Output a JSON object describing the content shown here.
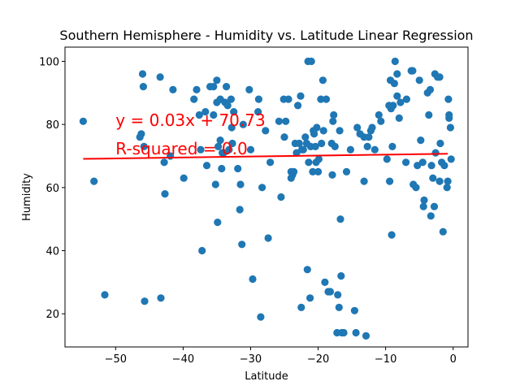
{
  "chart_data": {
    "type": "scatter",
    "title": "Southern Hemisphere - Humidity vs. Latitude Linear Regression",
    "xlabel": "Latitude",
    "ylabel": "Humidity",
    "xlim": [
      -57.5,
      2.2
    ],
    "ylim": [
      9.5,
      104.5
    ],
    "xticks": [
      -50,
      -40,
      -30,
      -20,
      -10,
      0
    ],
    "yticks": [
      20,
      40,
      60,
      80,
      100
    ],
    "grid": false,
    "point_color": "#1f77b4",
    "line_color": "#ff0000",
    "regression": {
      "slope": 0.03,
      "intercept": 70.73,
      "x_range": [
        -54.8,
        -0.8
      ]
    },
    "annotations": [
      {
        "text": "y = 0.03x + 70.73",
        "x": -50,
        "y": 79.5,
        "color": "#ff0000"
      },
      {
        "text": "R-squared = 0.0",
        "x": -50,
        "y": 70.5,
        "color": "#ff0000"
      }
    ],
    "points": [
      [
        -54.8,
        81
      ],
      [
        -53.2,
        62
      ],
      [
        -51.6,
        26
      ],
      [
        -46.2,
        77
      ],
      [
        -46.4,
        76
      ],
      [
        -46.0,
        96
      ],
      [
        -45.9,
        92
      ],
      [
        -45.8,
        73
      ],
      [
        -45.7,
        24
      ],
      [
        -43.4,
        95
      ],
      [
        -43.3,
        25
      ],
      [
        -42.8,
        68
      ],
      [
        -42.7,
        58
      ],
      [
        -41.9,
        70
      ],
      [
        -41.5,
        91
      ],
      [
        -39.9,
        63
      ],
      [
        -38.4,
        88
      ],
      [
        -38.0,
        91
      ],
      [
        -37.6,
        83
      ],
      [
        -37.4,
        72
      ],
      [
        -37.2,
        40
      ],
      [
        -36.7,
        84
      ],
      [
        -36.5,
        67
      ],
      [
        -36.0,
        92
      ],
      [
        -35.5,
        92
      ],
      [
        -35.5,
        83
      ],
      [
        -35.2,
        61
      ],
      [
        -35.0,
        94
      ],
      [
        -35.0,
        87
      ],
      [
        -34.9,
        49
      ],
      [
        -34.8,
        73
      ],
      [
        -34.5,
        88
      ],
      [
        -34.5,
        75
      ],
      [
        -34.3,
        66
      ],
      [
        -34.2,
        71
      ],
      [
        -34.0,
        71
      ],
      [
        -33.8,
        87
      ],
      [
        -33.6,
        92
      ],
      [
        -33.4,
        86
      ],
      [
        -33.2,
        72
      ],
      [
        -32.9,
        88
      ],
      [
        -32.8,
        79
      ],
      [
        -32.7,
        74
      ],
      [
        -32.5,
        84
      ],
      [
        -31.9,
        66
      ],
      [
        -31.6,
        53
      ],
      [
        -31.5,
        61
      ],
      [
        -31.3,
        42
      ],
      [
        -31.1,
        80
      ],
      [
        -30.2,
        91
      ],
      [
        -30.0,
        72
      ],
      [
        -29.7,
        31
      ],
      [
        -28.9,
        84
      ],
      [
        -28.8,
        88
      ],
      [
        -28.5,
        19
      ],
      [
        -28.3,
        60
      ],
      [
        -27.8,
        78
      ],
      [
        -27.4,
        44
      ],
      [
        -27.1,
        68
      ],
      [
        -25.8,
        81
      ],
      [
        -25.5,
        57
      ],
      [
        -25.1,
        88
      ],
      [
        -25.0,
        76
      ],
      [
        -24.8,
        81
      ],
      [
        -24.4,
        88
      ],
      [
        -24.0,
        65
      ],
      [
        -24.0,
        63
      ],
      [
        -23.8,
        64
      ],
      [
        -23.6,
        65
      ],
      [
        -23.4,
        74
      ],
      [
        -23.2,
        71
      ],
      [
        -23.0,
        86
      ],
      [
        -22.8,
        74
      ],
      [
        -22.6,
        89
      ],
      [
        -22.5,
        22
      ],
      [
        -22.4,
        72
      ],
      [
        -22.2,
        72
      ],
      [
        -21.9,
        76
      ],
      [
        -21.7,
        74
      ],
      [
        -21.6,
        34
      ],
      [
        -21.5,
        100
      ],
      [
        -21.4,
        68
      ],
      [
        -21.2,
        25
      ],
      [
        -21.1,
        73
      ],
      [
        -21.0,
        100
      ],
      [
        -20.8,
        65
      ],
      [
        -20.7,
        78
      ],
      [
        -20.6,
        77
      ],
      [
        -20.4,
        73
      ],
      [
        -20.3,
        68
      ],
      [
        -20.2,
        79
      ],
      [
        -20.0,
        65
      ],
      [
        -19.9,
        69
      ],
      [
        -19.6,
        88
      ],
      [
        -19.5,
        74
      ],
      [
        -19.3,
        94
      ],
      [
        -19.2,
        78
      ],
      [
        -19.0,
        30
      ],
      [
        -18.8,
        88
      ],
      [
        -18.5,
        27
      ],
      [
        -18.2,
        27
      ],
      [
        -18.0,
        74
      ],
      [
        -17.9,
        64
      ],
      [
        -17.8,
        81
      ],
      [
        -17.7,
        83
      ],
      [
        -17.5,
        73
      ],
      [
        -17.2,
        14
      ],
      [
        -17.1,
        26
      ],
      [
        -16.9,
        22
      ],
      [
        -16.8,
        78
      ],
      [
        -16.7,
        50
      ],
      [
        -16.6,
        32
      ],
      [
        -16.5,
        14
      ],
      [
        -16.2,
        14
      ],
      [
        -15.8,
        65
      ],
      [
        -15.2,
        72
      ],
      [
        -14.6,
        21
      ],
      [
        -14.4,
        14
      ],
      [
        -14.2,
        79
      ],
      [
        -13.8,
        77
      ],
      [
        -13.2,
        62
      ],
      [
        -13.2,
        76
      ],
      [
        -12.9,
        13
      ],
      [
        -12.7,
        73
      ],
      [
        -12.5,
        76
      ],
      [
        -12.2,
        78
      ],
      [
        -12.0,
        79
      ],
      [
        -11.6,
        72
      ],
      [
        -11.0,
        83
      ],
      [
        -10.7,
        81
      ],
      [
        -9.8,
        69
      ],
      [
        -9.5,
        86
      ],
      [
        -9.4,
        62
      ],
      [
        -9.3,
        94
      ],
      [
        -9.2,
        85
      ],
      [
        -9.1,
        45
      ],
      [
        -9.0,
        73
      ],
      [
        -8.9,
        86
      ],
      [
        -8.7,
        93
      ],
      [
        -8.6,
        100
      ],
      [
        -8.3,
        89
      ],
      [
        -8.3,
        96
      ],
      [
        -8.0,
        82
      ],
      [
        -7.8,
        87
      ],
      [
        -7.0,
        68
      ],
      [
        -6.9,
        88
      ],
      [
        -6.2,
        97
      ],
      [
        -6.0,
        97
      ],
      [
        -5.9,
        61
      ],
      [
        -5.5,
        60
      ],
      [
        -5.3,
        67
      ],
      [
        -5.0,
        94
      ],
      [
        -4.8,
        75
      ],
      [
        -4.5,
        68
      ],
      [
        -4.4,
        54
      ],
      [
        -4.3,
        56
      ],
      [
        -3.8,
        90
      ],
      [
        -3.6,
        83
      ],
      [
        -3.4,
        91
      ],
      [
        -3.3,
        51
      ],
      [
        -3.2,
        67
      ],
      [
        -3.0,
        63
      ],
      [
        -2.8,
        54
      ],
      [
        -2.7,
        96
      ],
      [
        -2.6,
        71
      ],
      [
        -2.3,
        95
      ],
      [
        -2.0,
        95
      ],
      [
        -2.0,
        62
      ],
      [
        -1.9,
        74
      ],
      [
        -1.7,
        68
      ],
      [
        -1.5,
        46
      ],
      [
        -1.3,
        67
      ],
      [
        -0.9,
        60
      ],
      [
        -0.8,
        62
      ],
      [
        -0.7,
        88
      ],
      [
        -0.6,
        83
      ],
      [
        -0.6,
        82
      ],
      [
        -0.4,
        79
      ],
      [
        -0.3,
        69
      ]
    ]
  }
}
